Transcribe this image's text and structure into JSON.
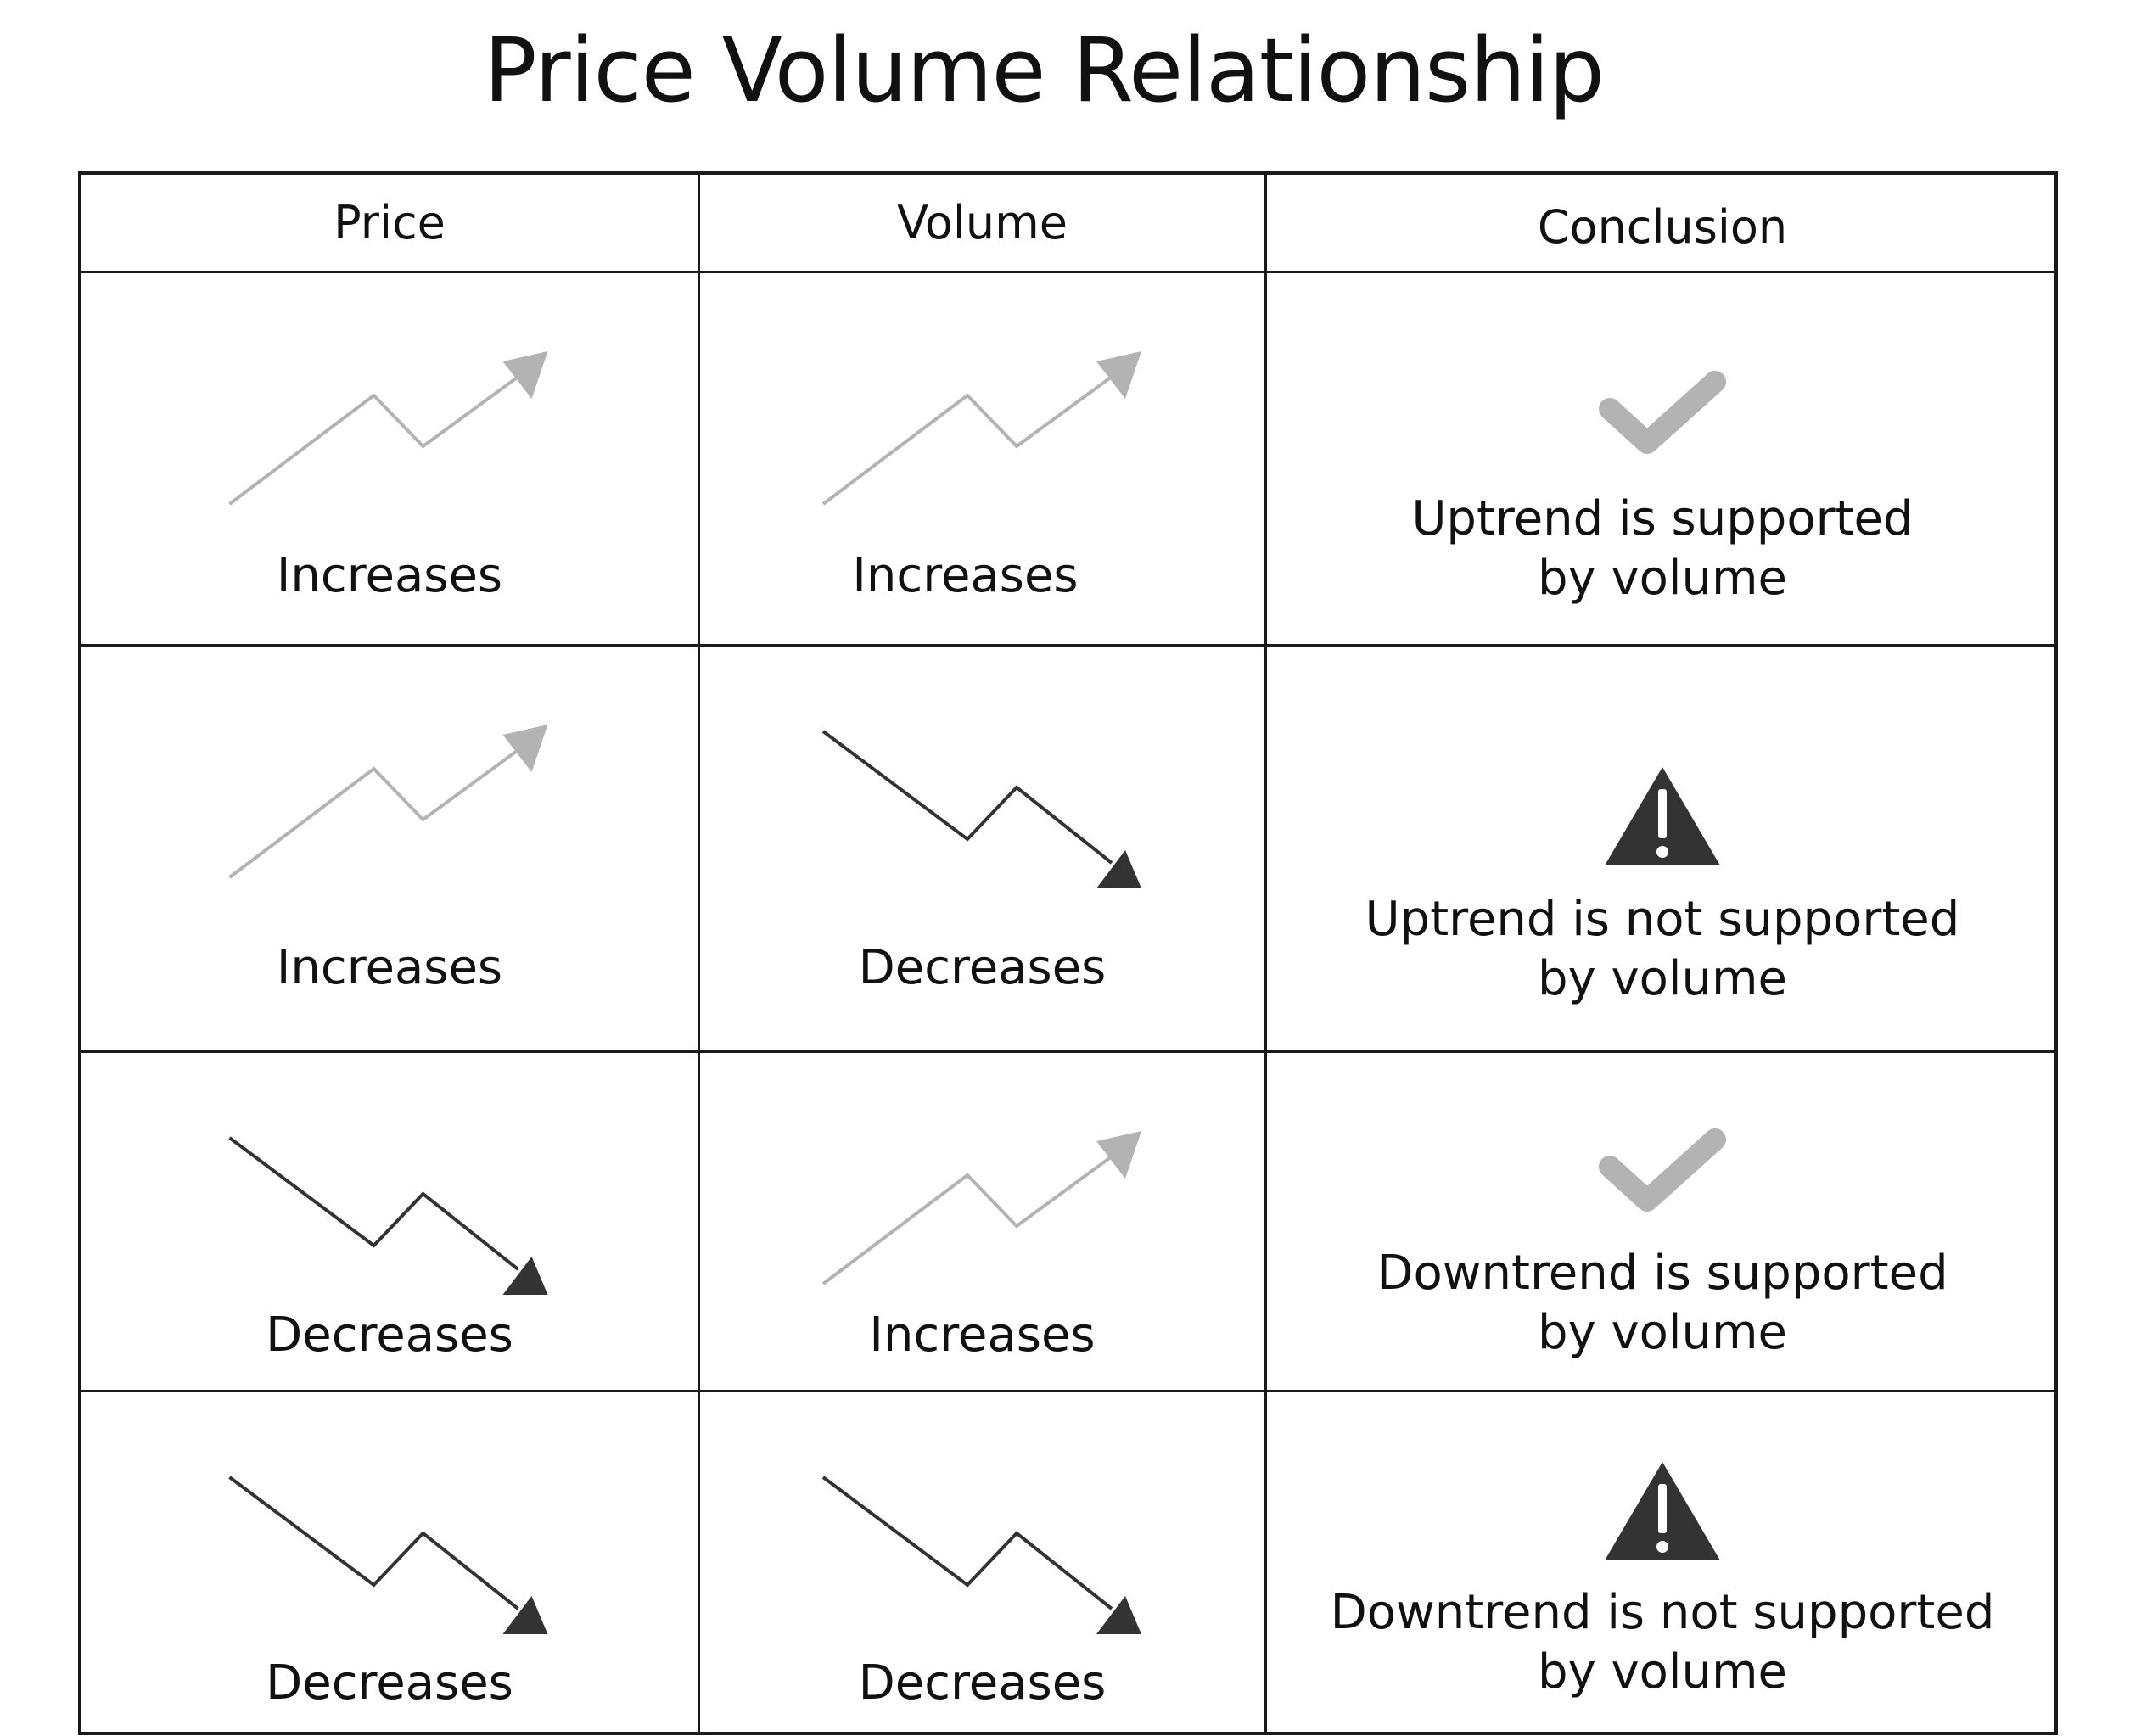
{
  "title": "Price Volume Relationship",
  "headers": {
    "price": "Price",
    "volume": "Volume",
    "conclusion": "Conclusion"
  },
  "colors": {
    "up": "#b3b3b3",
    "down": "#333333",
    "check": "#b3b3b3",
    "warning": "#333333"
  },
  "rows": [
    {
      "price": {
        "trend": "up",
        "label": "Increases"
      },
      "volume": {
        "trend": "up",
        "label": "Increases"
      },
      "conclusion": {
        "icon": "check-icon",
        "line1": "Uptrend is supported",
        "line2": "by volume"
      }
    },
    {
      "price": {
        "trend": "up",
        "label": "Increases"
      },
      "volume": {
        "trend": "down",
        "label": "Decreases"
      },
      "conclusion": {
        "icon": "warning-icon",
        "line1": "Uptrend is not supported",
        "line2": "by volume"
      }
    },
    {
      "price": {
        "trend": "down",
        "label": "Decreases"
      },
      "volume": {
        "trend": "up",
        "label": "Increases"
      },
      "conclusion": {
        "icon": "check-icon",
        "line1": "Downtrend is supported",
        "line2": "by volume"
      }
    },
    {
      "price": {
        "trend": "down",
        "label": "Decreases"
      },
      "volume": {
        "trend": "down",
        "label": "Decreases"
      },
      "conclusion": {
        "icon": "warning-icon",
        "line1": "Downtrend is not supported",
        "line2": "by volume"
      }
    }
  ]
}
